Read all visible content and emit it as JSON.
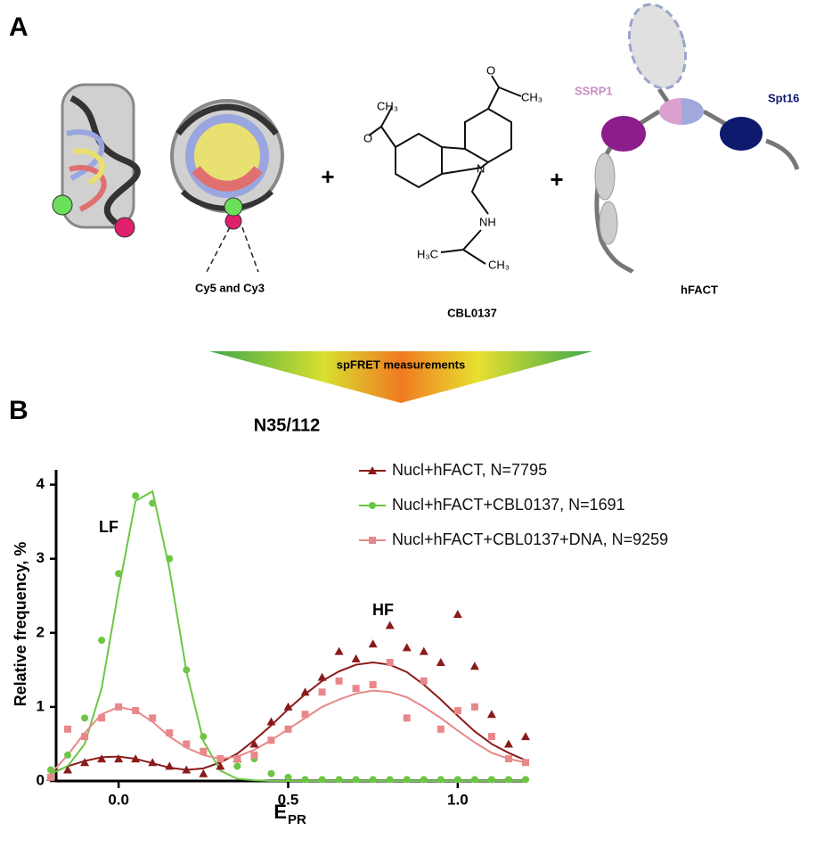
{
  "panel_a": {
    "label": "A",
    "cy_label": "Cy5 and Cy3",
    "plus_1": "+",
    "plus_2": "+",
    "compound": "CBL0137",
    "atoms": [
      "O",
      "CH₃",
      "O",
      "CH₃",
      "N",
      "NH",
      "H₃C",
      "CH₃"
    ],
    "ssrp1": "SSRP1",
    "spt16": "Spt16",
    "hfact": "hFACT",
    "arrow_text": "spFRET measurements"
  },
  "chart_data": {
    "type": "scatter",
    "panel_label": "B",
    "title": "N35/112",
    "y_label": "Relative frequency, %",
    "x_label": "E",
    "x_label_sub": "PR",
    "annotations": [
      "LF",
      "HF"
    ],
    "xlim": [
      -0.2,
      1.2
    ],
    "ylim": [
      0,
      4.2
    ],
    "xticks": [
      {
        "value": 0,
        "label": "0.0"
      },
      {
        "value": 0.5,
        "label": "0.5"
      },
      {
        "value": 1,
        "label": "1.0"
      }
    ],
    "yticks": [
      0,
      1,
      2,
      3,
      4
    ],
    "x": [
      -0.2,
      -0.15,
      -0.1,
      -0.05,
      0,
      0.05,
      0.1,
      0.15,
      0.2,
      0.25,
      0.3,
      0.35,
      0.4,
      0.45,
      0.5,
      0.55,
      0.6,
      0.65,
      0.7,
      0.75,
      0.8,
      0.85,
      0.9,
      0.95,
      1.0,
      1.05,
      1.1,
      1.15,
      1.2
    ],
    "series": [
      {
        "name": "Nucl+hFACT, N=7795",
        "color": "#8b1a1a",
        "marker": "triangle",
        "values": [
          0.05,
          0.15,
          0.25,
          0.3,
          0.3,
          0.3,
          0.25,
          0.2,
          0.15,
          0.1,
          0.2,
          0.3,
          0.5,
          0.8,
          1.0,
          1.2,
          1.4,
          1.75,
          1.65,
          1.85,
          2.1,
          1.8,
          1.75,
          1.6,
          2.25,
          1.55,
          0.9,
          0.5,
          0.6
        ],
        "curve": [
          0.1,
          0.2,
          0.27,
          0.32,
          0.33,
          0.3,
          0.24,
          0.18,
          0.15,
          0.17,
          0.25,
          0.37,
          0.55,
          0.75,
          0.97,
          1.17,
          1.35,
          1.48,
          1.57,
          1.6,
          1.57,
          1.47,
          1.3,
          1.1,
          0.88,
          0.67,
          0.5,
          0.38,
          0.28
        ]
      },
      {
        "name": "Nucl+hFACT+CBL0137, N=1691",
        "color": "#6cc644",
        "marker": "circle",
        "values": [
          0.15,
          0.35,
          0.85,
          1.9,
          2.8,
          3.85,
          3.75,
          3.0,
          1.5,
          0.6,
          0.3,
          0.2,
          0.3,
          0.1,
          0.05,
          0.02,
          0.02,
          0.02,
          0.02,
          0.02,
          0.02,
          0.02,
          0.02,
          0.02,
          0.02,
          0.02,
          0.02,
          0.02,
          0.02
        ],
        "curve": [
          0.1,
          0.2,
          0.5,
          1.25,
          2.58,
          3.78,
          3.91,
          2.86,
          1.48,
          0.54,
          0.14,
          0.03,
          0.01,
          0,
          0,
          0,
          0,
          0,
          0,
          0,
          0,
          0,
          0,
          0,
          0,
          0,
          0,
          0,
          0
        ]
      },
      {
        "name": "Nucl+hFACT+CBL0137+DNA, N=9259",
        "color": "#e8888a",
        "marker": "square",
        "values": [
          0.05,
          0.7,
          0.6,
          0.85,
          1.0,
          0.95,
          0.85,
          0.65,
          0.5,
          0.4,
          0.3,
          0.3,
          0.35,
          0.55,
          0.7,
          0.9,
          1.2,
          1.35,
          1.25,
          1.3,
          1.6,
          0.85,
          1.35,
          0.7,
          0.95,
          1.0,
          0.6,
          0.3,
          0.25
        ],
        "curve": [
          0.1,
          0.35,
          0.65,
          0.9,
          1.0,
          0.95,
          0.8,
          0.6,
          0.45,
          0.35,
          0.3,
          0.33,
          0.42,
          0.55,
          0.7,
          0.85,
          1.0,
          1.1,
          1.18,
          1.22,
          1.2,
          1.13,
          1.0,
          0.85,
          0.68,
          0.52,
          0.38,
          0.3,
          0.25
        ]
      }
    ]
  }
}
